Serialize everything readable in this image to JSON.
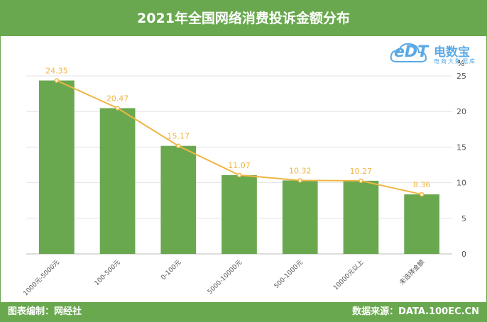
{
  "title": "2021年全国网络消费投诉金额分布",
  "footer": {
    "left": "图表编制：网经社",
    "right": "数据来源：DATA.100EC.CN"
  },
  "logo": {
    "text_en": "eDT",
    "text_cn": "电数宝",
    "subtitle": "电商大数据库"
  },
  "colors": {
    "bar": "#6aa84f",
    "line": "#efb644",
    "label": "#efb644",
    "header": "#6aa84f"
  },
  "chart_data": {
    "type": "bar",
    "categories": [
      "1000元-5000元",
      "100-500元",
      "0-100元",
      "5000-10000元",
      "500-1000元",
      "10000元以上",
      "未选择金额"
    ],
    "values": [
      24.35,
      20.47,
      15.17,
      11.07,
      10.32,
      10.27,
      8.36
    ],
    "line_overlay": true,
    "data_labels": [
      "24.35",
      "20.47",
      "15.17",
      "11.07",
      "10.32",
      "10.27",
      "8.36"
    ],
    "y_unit": "%",
    "ylim": [
      0,
      25
    ],
    "yticks": [
      "0",
      "5",
      "10",
      "15",
      "20",
      "25"
    ],
    "y_axis_side": "right",
    "grid": true
  }
}
